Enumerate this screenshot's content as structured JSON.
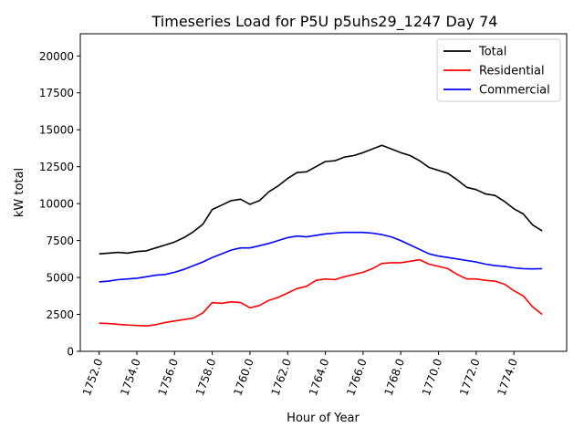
{
  "chart_data": {
    "type": "line",
    "title": "Timeseries Load for P5U p5uhs29_1247  Day 74",
    "xlabel": "Hour of Year",
    "ylabel": "kW total",
    "xlim": [
      1751.0,
      1776.8
    ],
    "ylim": [
      0,
      21500
    ],
    "xticks": [
      1752,
      1754,
      1756,
      1758,
      1760,
      1762,
      1764,
      1766,
      1768,
      1770,
      1772,
      1774
    ],
    "xtick_labels": [
      "1752.0",
      "1754.0",
      "1756.0",
      "1758.0",
      "1760.0",
      "1762.0",
      "1764.0",
      "1766.0",
      "1768.0",
      "1770.0",
      "1772.0",
      "1774.0"
    ],
    "yticks": [
      0,
      2500,
      5000,
      7500,
      10000,
      12500,
      15000,
      17500,
      20000
    ],
    "ytick_labels": [
      "0",
      "2500",
      "5000",
      "7500",
      "10000",
      "12500",
      "15000",
      "17500",
      "20000"
    ],
    "grid": false,
    "legend_position": "top-right",
    "x": [
      1752.0,
      1752.5,
      1753.0,
      1753.5,
      1754.0,
      1754.5,
      1755.0,
      1755.5,
      1756.0,
      1756.5,
      1757.0,
      1757.5,
      1758.0,
      1758.5,
      1759.0,
      1759.5,
      1760.0,
      1760.5,
      1761.0,
      1761.5,
      1762.0,
      1762.5,
      1763.0,
      1763.5,
      1764.0,
      1764.5,
      1765.0,
      1765.5,
      1766.0,
      1766.5,
      1767.0,
      1767.5,
      1768.0,
      1768.5,
      1769.0,
      1769.5,
      1770.0,
      1770.5,
      1771.0,
      1771.5,
      1772.0,
      1772.5,
      1773.0,
      1773.5,
      1774.0,
      1774.5,
      1775.0,
      1775.5
    ],
    "series": [
      {
        "name": "Total",
        "color": "#000000",
        "values": [
          6600,
          6650,
          6700,
          6650,
          6750,
          6800,
          7000,
          7200,
          7400,
          7700,
          8100,
          8600,
          9600,
          9900,
          10200,
          10300,
          9950,
          10200,
          10800,
          11200,
          11700,
          12100,
          12150,
          12500,
          12850,
          12900,
          13150,
          13250,
          13450,
          13700,
          13950,
          13700,
          13450,
          13250,
          12900,
          12450,
          12250,
          12050,
          11600,
          11100,
          10950,
          10650,
          10550,
          10150,
          9650,
          9300,
          8550,
          8150
        ]
      },
      {
        "name": "Residential",
        "color": "#ff0000",
        "values": [
          1900,
          1880,
          1830,
          1780,
          1750,
          1720,
          1800,
          1950,
          2050,
          2150,
          2250,
          2600,
          3300,
          3250,
          3350,
          3300,
          2950,
          3100,
          3450,
          3650,
          3950,
          4250,
          4400,
          4800,
          4900,
          4850,
          5050,
          5200,
          5350,
          5600,
          5950,
          6000,
          6000,
          6100,
          6200,
          5900,
          5750,
          5600,
          5200,
          4900,
          4900,
          4800,
          4750,
          4550,
          4100,
          3750,
          3000,
          2500
        ]
      },
      {
        "name": "Commercial",
        "color": "#0000ff",
        "values": [
          4700,
          4750,
          4850,
          4900,
          4950,
          5050,
          5150,
          5200,
          5350,
          5550,
          5800,
          6050,
          6350,
          6600,
          6850,
          7000,
          7000,
          7150,
          7300,
          7500,
          7700,
          7800,
          7750,
          7850,
          7950,
          8000,
          8050,
          8050,
          8050,
          8000,
          7900,
          7750,
          7500,
          7200,
          6900,
          6600,
          6450,
          6350,
          6250,
          6150,
          6050,
          5900,
          5800,
          5750,
          5650,
          5600,
          5580,
          5600
        ]
      }
    ]
  }
}
